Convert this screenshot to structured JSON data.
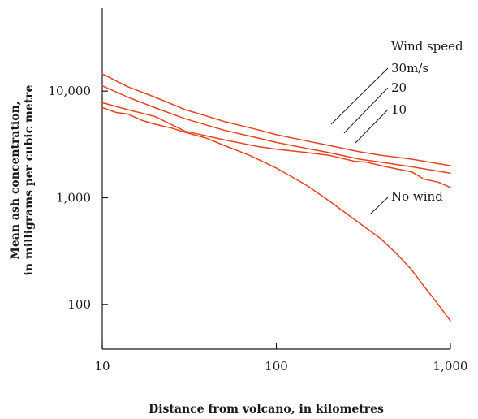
{
  "chart_data": {
    "type": "line",
    "xlabel": "Distance from volcano, in kilometres",
    "ylabel_line1": "Mean ash concentration,",
    "ylabel_line2": "in milligrams per cubic metre",
    "x_scale": "log",
    "y_scale": "log",
    "xlim": [
      10,
      1000
    ],
    "ylim": [
      38,
      60000
    ],
    "x_ticks": [
      {
        "value": 10,
        "label": "10"
      },
      {
        "value": 100,
        "label": "100"
      },
      {
        "value": 1000,
        "label": "1,000"
      }
    ],
    "y_ticks": [
      {
        "value": 100,
        "label": "100"
      },
      {
        "value": 1000,
        "label": "1,000"
      },
      {
        "value": 10000,
        "label": "10,000"
      }
    ],
    "legend_title": "Wind speed",
    "line_color": "#e8431f",
    "grid": false,
    "series": [
      {
        "name": "30m/s",
        "x": [
          10,
          14,
          20,
          30,
          50,
          80,
          100,
          150,
          200,
          300,
          400,
          600,
          1000
        ],
        "y": [
          14500,
          11000,
          8800,
          6700,
          5200,
          4300,
          3900,
          3400,
          3100,
          2700,
          2500,
          2300,
          2000
        ]
      },
      {
        "name": "20",
        "x": [
          10,
          14,
          20,
          30,
          50,
          80,
          100,
          150,
          200,
          300,
          400,
          600,
          1000
        ],
        "y": [
          11200,
          8800,
          7000,
          5500,
          4300,
          3600,
          3300,
          2900,
          2650,
          2300,
          2150,
          1950,
          1700
        ]
      },
      {
        "name": "10",
        "x": [
          10,
          14,
          20,
          30,
          50,
          80,
          100,
          150,
          200,
          280,
          330,
          400,
          500,
          600,
          700,
          850,
          1000
        ],
        "y": [
          7800,
          6700,
          5800,
          4200,
          3500,
          3000,
          2850,
          2650,
          2500,
          2200,
          2150,
          2000,
          1850,
          1750,
          1500,
          1400,
          1250
        ]
      },
      {
        "name": "No wind",
        "x": [
          10,
          12,
          14,
          17,
          20,
          25,
          30,
          40,
          50,
          70,
          100,
          150,
          200,
          300,
          400,
          500,
          600,
          700,
          850,
          1000
        ],
        "y": [
          7000,
          6300,
          6100,
          5300,
          4900,
          4500,
          4100,
          3600,
          3100,
          2500,
          1900,
          1300,
          940,
          580,
          410,
          290,
          210,
          150,
          100,
          70
        ]
      }
    ]
  }
}
